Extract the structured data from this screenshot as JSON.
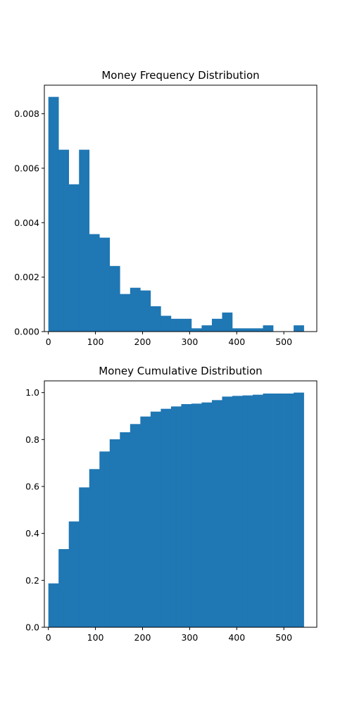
{
  "chart_data": [
    {
      "type": "bar",
      "title": "Money Frequency Distribution",
      "xlabel": "",
      "ylabel": "",
      "bin_edges": [
        0,
        21.7,
        43.4,
        65.1,
        86.8,
        108.5,
        130.2,
        151.9,
        173.6,
        195.3,
        217,
        238.7,
        260.4,
        282.1,
        303.8,
        325.5,
        347.2,
        368.9,
        390.6,
        412.3,
        434,
        455.7,
        477.4,
        499.1,
        520.8,
        542.5
      ],
      "values": [
        0.00862,
        0.00668,
        0.00541,
        0.00668,
        0.00358,
        0.00345,
        0.00241,
        0.00138,
        0.00161,
        0.00151,
        0.00093,
        0.00058,
        0.00047,
        0.00047,
        0.00012,
        0.00023,
        0.00047,
        0.0007,
        0.00012,
        0.00012,
        0.00012,
        0.00023,
        0.0,
        0.0,
        0.00023
      ],
      "xlim": [
        -8.5,
        570
      ],
      "ylim": [
        0,
        0.00905
      ],
      "xticks": [
        0,
        100,
        200,
        300,
        400,
        500
      ],
      "xtick_labels": [
        "0",
        "100",
        "200",
        "300",
        "400",
        "500"
      ],
      "yticks": [
        0,
        0.002,
        0.004,
        0.006,
        0.008
      ],
      "ytick_labels": [
        "0.000",
        "0.002",
        "0.004",
        "0.006",
        "0.008"
      ],
      "grid": false,
      "color": "#1f77b4"
    },
    {
      "type": "bar",
      "title": "Money Cumulative Distribution",
      "xlabel": "",
      "ylabel": "",
      "bin_edges": [
        0,
        21.7,
        43.4,
        65.1,
        86.8,
        108.5,
        130.2,
        151.9,
        173.6,
        195.3,
        217,
        238.7,
        260.4,
        282.1,
        303.8,
        325.5,
        347.2,
        368.9,
        390.6,
        412.3,
        434,
        455.7,
        477.4,
        499.1,
        520.8,
        542.5
      ],
      "values": [
        0.187,
        0.333,
        0.451,
        0.596,
        0.674,
        0.749,
        0.801,
        0.831,
        0.866,
        0.898,
        0.919,
        0.931,
        0.941,
        0.951,
        0.953,
        0.958,
        0.968,
        0.983,
        0.986,
        0.988,
        0.991,
        0.996,
        0.996,
        0.996,
        1.0
      ],
      "xlim": [
        -8.5,
        570
      ],
      "ylim": [
        0,
        1.05
      ],
      "xticks": [
        0,
        100,
        200,
        300,
        400,
        500
      ],
      "xtick_labels": [
        "0",
        "100",
        "200",
        "300",
        "400",
        "500"
      ],
      "yticks": [
        0,
        0.2,
        0.4,
        0.6,
        0.8,
        1.0
      ],
      "ytick_labels": [
        "0.0",
        "0.2",
        "0.4",
        "0.6",
        "0.8",
        "1.0"
      ],
      "grid": false,
      "color": "#1f77b4"
    }
  ]
}
